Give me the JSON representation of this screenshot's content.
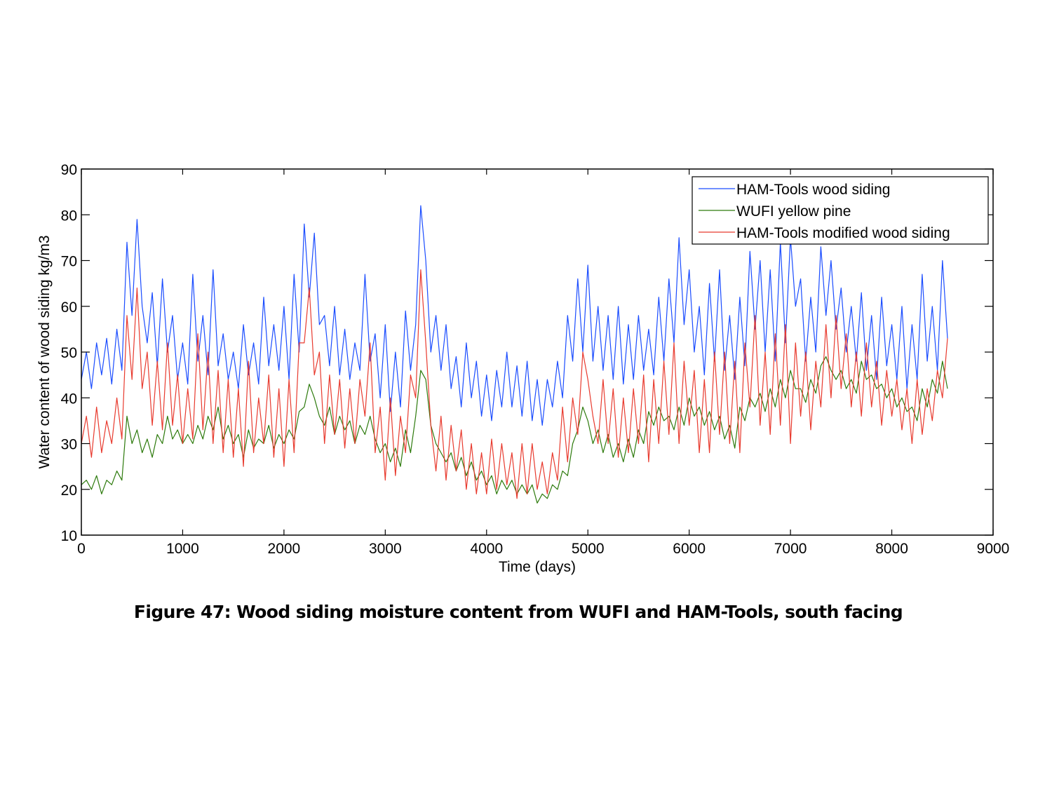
{
  "caption": "Figure 47: Wood siding moisture content from WUFI and HAM-Tools, south facing",
  "chart_data": {
    "type": "line",
    "title": "",
    "xlabel": "Time (days)",
    "ylabel": "Water content of wood siding kg/m3",
    "xlim": [
      0,
      9000
    ],
    "ylim": [
      10,
      90
    ],
    "xticks": [
      0,
      1000,
      2000,
      3000,
      4000,
      5000,
      6000,
      7000,
      8000,
      9000
    ],
    "yticks": [
      10,
      20,
      30,
      40,
      50,
      60,
      70,
      80,
      90
    ],
    "grid": false,
    "legend_position": "top-right",
    "x": [
      0,
      50,
      100,
      150,
      200,
      250,
      300,
      350,
      400,
      450,
      500,
      550,
      600,
      650,
      700,
      750,
      800,
      850,
      900,
      950,
      1000,
      1050,
      1100,
      1150,
      1200,
      1250,
      1300,
      1350,
      1400,
      1450,
      1500,
      1550,
      1600,
      1650,
      1700,
      1750,
      1800,
      1850,
      1900,
      1950,
      2000,
      2050,
      2100,
      2150,
      2200,
      2250,
      2300,
      2350,
      2400,
      2450,
      2500,
      2550,
      2600,
      2650,
      2700,
      2750,
      2800,
      2850,
      2900,
      2950,
      3000,
      3050,
      3100,
      3150,
      3200,
      3250,
      3300,
      3350,
      3400,
      3450,
      3500,
      3550,
      3600,
      3650,
      3700,
      3750,
      3800,
      3850,
      3900,
      3950,
      4000,
      4050,
      4100,
      4150,
      4200,
      4250,
      4300,
      4350,
      4400,
      4450,
      4500,
      4550,
      4600,
      4650,
      4700,
      4750,
      4800,
      4850,
      4900,
      4950,
      5000,
      5050,
      5100,
      5150,
      5200,
      5250,
      5300,
      5350,
      5400,
      5450,
      5500,
      5550,
      5600,
      5650,
      5700,
      5750,
      5800,
      5850,
      5900,
      5950,
      6000,
      6050,
      6100,
      6150,
      6200,
      6250,
      6300,
      6350,
      6400,
      6450,
      6500,
      6550,
      6600,
      6650,
      6700,
      6750,
      6800,
      6850,
      6900,
      6950,
      7000,
      7050,
      7100,
      7150,
      7200,
      7250,
      7300,
      7350,
      7400,
      7450,
      7500,
      7550,
      7600,
      7650,
      7700,
      7750,
      7800,
      7850,
      7900,
      7950,
      8000,
      8050,
      8100,
      8150,
      8200,
      8250,
      8300,
      8350,
      8400,
      8450,
      8500,
      8550,
      8600,
      8650,
      8700,
      8760
    ],
    "series": [
      {
        "name": "HAM-Tools wood siding",
        "color": "#1a4cff",
        "values": [
          44,
          50,
          42,
          52,
          45,
          53,
          43,
          55,
          46,
          74,
          58,
          79,
          60,
          52,
          63,
          47,
          66,
          50,
          58,
          44,
          52,
          43,
          67,
          48,
          58,
          45,
          68,
          47,
          54,
          44,
          50,
          42,
          56,
          45,
          52,
          43,
          62,
          47,
          56,
          46,
          60,
          44,
          67,
          50,
          78,
          62,
          76,
          56,
          58,
          47,
          60,
          45,
          55,
          44,
          52,
          46,
          67,
          48,
          54,
          40,
          56,
          37,
          50,
          38,
          59,
          46,
          56,
          82,
          70,
          50,
          58,
          46,
          56,
          42,
          49,
          38,
          52,
          40,
          48,
          36,
          45,
          35,
          46,
          38,
          50,
          38,
          47,
          36,
          48,
          35,
          44,
          34,
          44,
          38,
          48,
          40,
          58,
          48,
          66,
          50,
          69,
          48,
          60,
          46,
          58,
          44,
          60,
          43,
          56,
          44,
          58,
          46,
          55,
          45,
          62,
          48,
          66,
          52,
          75,
          56,
          68,
          50,
          60,
          45,
          65,
          48,
          68,
          46,
          58,
          44,
          62,
          47,
          72,
          55,
          70,
          50,
          68,
          48,
          74,
          52,
          75,
          60,
          66,
          48,
          62,
          50,
          73,
          58,
          70,
          55,
          64,
          50,
          60,
          48,
          63,
          46,
          58,
          44,
          62,
          47,
          56,
          44,
          60,
          42,
          56,
          44,
          67,
          48,
          60,
          46,
          70,
          53
        ]
      },
      {
        "name": "WUFI yellow pine",
        "color": "#2d7a0c",
        "values": [
          21,
          22,
          20,
          23,
          19,
          22,
          21,
          24,
          22,
          36,
          30,
          33,
          28,
          31,
          27,
          32,
          30,
          36,
          31,
          33,
          30,
          32,
          30,
          34,
          31,
          36,
          33,
          38,
          31,
          34,
          30,
          32,
          27,
          33,
          29,
          31,
          30,
          34,
          29,
          32,
          30,
          33,
          31,
          37,
          38,
          43,
          40,
          36,
          34,
          38,
          32,
          36,
          33,
          35,
          30,
          34,
          32,
          36,
          31,
          28,
          30,
          26,
          29,
          25,
          33,
          28,
          36,
          46,
          44,
          34,
          30,
          28,
          26,
          28,
          24,
          27,
          23,
          26,
          22,
          24,
          21,
          23,
          19,
          22,
          20,
          22,
          19,
          21,
          19,
          21,
          17,
          19,
          18,
          21,
          20,
          24,
          23,
          30,
          33,
          38,
          35,
          30,
          33,
          28,
          32,
          27,
          30,
          26,
          31,
          27,
          33,
          30,
          37,
          34,
          38,
          35,
          36,
          33,
          38,
          34,
          40,
          36,
          38,
          34,
          37,
          33,
          36,
          31,
          34,
          29,
          38,
          35,
          40,
          38,
          41,
          37,
          42,
          38,
          44,
          40,
          46,
          42,
          42,
          39,
          44,
          41,
          47,
          49,
          46,
          44,
          46,
          42,
          44,
          41,
          48,
          44,
          45,
          42,
          43,
          40,
          42,
          38,
          40,
          37,
          38,
          35,
          42,
          38,
          44,
          41,
          48,
          42
        ]
      },
      {
        "name": "HAM-Tools modified wood siding",
        "color": "#e83a2e",
        "values": [
          30,
          36,
          27,
          38,
          28,
          35,
          30,
          40,
          31,
          58,
          44,
          64,
          42,
          50,
          34,
          48,
          33,
          52,
          34,
          45,
          30,
          42,
          31,
          54,
          33,
          50,
          30,
          46,
          28,
          44,
          27,
          42,
          25,
          48,
          28,
          40,
          30,
          45,
          27,
          42,
          25,
          44,
          28,
          52,
          52,
          64,
          45,
          50,
          30,
          45,
          32,
          44,
          29,
          42,
          30,
          44,
          36,
          52,
          28,
          38,
          22,
          40,
          23,
          36,
          28,
          45,
          40,
          68,
          52,
          34,
          24,
          36,
          22,
          34,
          24,
          33,
          20,
          30,
          19,
          28,
          19,
          31,
          20,
          30,
          21,
          28,
          18,
          30,
          19,
          30,
          20,
          26,
          19,
          28,
          22,
          38,
          26,
          40,
          32,
          50,
          44,
          36,
          30,
          44,
          30,
          42,
          27,
          40,
          28,
          42,
          30,
          45,
          26,
          44,
          30,
          48,
          32,
          52,
          30,
          48,
          34,
          46,
          28,
          44,
          28,
          50,
          32,
          50,
          30,
          48,
          28,
          52,
          38,
          58,
          34,
          50,
          32,
          54,
          34,
          56,
          30,
          52,
          36,
          50,
          33,
          48,
          38,
          56,
          40,
          58,
          42,
          54,
          38,
          50,
          36,
          52,
          38,
          48,
          34,
          46,
          36,
          44,
          33,
          42,
          30,
          44,
          32,
          42,
          35,
          46,
          40,
          53
        ]
      }
    ]
  }
}
